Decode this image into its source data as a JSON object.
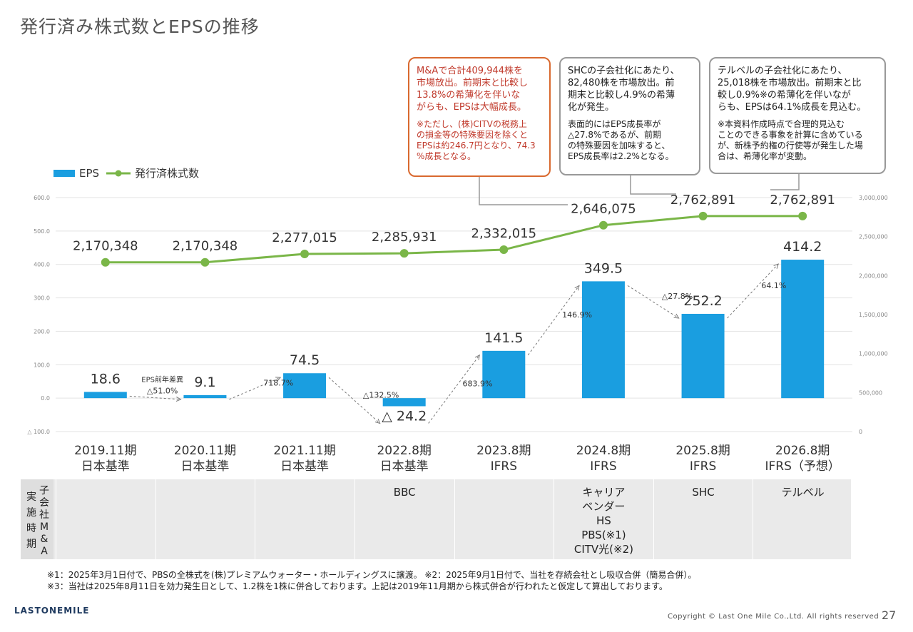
{
  "title": "発行済み株式数とEPSの推移",
  "callouts": [
    {
      "main": "M&Aで合計409,944株を\n市場放出。前期末と比較し\n13.8%の希薄化を伴いな\nがらも、EPSは大幅成長。",
      "note": "※ただし、(株)CITVの税務上\nの損金等の特殊要因を除くと\nEPSは約246.7円となり、74.3\n%成長となる。"
    },
    {
      "main": "SHCの子会社化にあたり、\n82,480株を市場放出。前\n期末と比較し4.9%の希薄\n化が発生。",
      "note": "表面的にはEPS成長率が\n△27.8%であるが、前期\nの特殊要因を加味すると、\nEPS成長率は2.2%となる。"
    },
    {
      "main": "テルベルの子会社化にあたり、\n25,018株を市場放出。前期末と比\n較し0.9%※の希薄化を伴いなが\nらも、EPSは64.1%成長を見込む。",
      "note": "※本資料作成時点で合理的見込む\nことのできる事象を計算に含めている\nが、新株予約権の行使等が発生した場\n合は、希薄化率が変動。"
    }
  ],
  "legend": {
    "eps": "EPS",
    "shares": "発行済株式数"
  },
  "colors": {
    "eps_bar": "#1a9ee0",
    "shares_line": "#7ab648",
    "callout_accent": "#d9692f"
  },
  "chart_data": {
    "type": "bar",
    "categories": [
      "2019.11期\n日本基準",
      "2020.11期\n日本基準",
      "2021.11期\n日本基準",
      "2022.8期\n日本基準",
      "2023.8期\nIFRS",
      "2024.8期\nIFRS",
      "2025.8期\nIFRS",
      "2026.8期\nIFRS（予想）"
    ],
    "series": [
      {
        "name": "EPS",
        "type": "bar",
        "axis": "left",
        "values": [
          18.6,
          9.1,
          74.5,
          -24.2,
          141.5,
          349.5,
          252.2,
          414.2
        ],
        "labels": [
          "18.6",
          "9.1",
          "74.5",
          "△ 24.2",
          "141.5",
          "349.5",
          "252.2",
          "414.2"
        ]
      },
      {
        "name": "発行済株式数",
        "type": "line",
        "axis": "right",
        "values": [
          2170348,
          2170348,
          2277015,
          2285931,
          2332015,
          2646075,
          2762891,
          2762891
        ],
        "labels": [
          "2,170,348",
          "2,170,348",
          "2,277,015",
          "2,285,931",
          "2,332,015",
          "2,646,075",
          "2,762,891",
          "2,762,891"
        ]
      }
    ],
    "growth_annotations": [
      {
        "from": 0,
        "to": 1,
        "label": "△51.0%",
        "prefix": "EPS前年差異"
      },
      {
        "from": 1,
        "to": 2,
        "label": "718.7%"
      },
      {
        "from": 2,
        "to": 3,
        "label": "△132.5%"
      },
      {
        "from": 3,
        "to": 4,
        "label": "683.9%"
      },
      {
        "from": 4,
        "to": 5,
        "label": "146.9%"
      },
      {
        "from": 5,
        "to": 6,
        "label": "△27.8%"
      },
      {
        "from": 6,
        "to": 7,
        "label": "64.1%"
      }
    ],
    "left_axis": {
      "ylim": [
        -100,
        600
      ],
      "ticks": [
        600,
        500,
        400,
        300,
        200,
        100,
        0,
        -100
      ],
      "tick_labels": [
        "600.0",
        "500.0",
        "400.0",
        "300.0",
        "200.0",
        "100.0",
        "0.0",
        "△ 100.0"
      ]
    },
    "right_axis": {
      "ylim": [
        0,
        3000000
      ],
      "ticks": [
        3000000,
        2500000,
        2000000,
        1500000,
        1000000,
        500000,
        0
      ],
      "tick_labels": [
        "3,000,000",
        "2,500,000",
        "2,000,000",
        "1,500,000",
        "1,000,000",
        "500,000",
        "0"
      ]
    },
    "grid": true
  },
  "ma_table": {
    "header": "子会社M&A実施時期",
    "cells": [
      "",
      "",
      "",
      "BBC",
      "",
      "キャリア\nベンダー\nHS\nPBS(※1)\nCITV光(※2)",
      "SHC",
      "テルベル"
    ]
  },
  "footnotes": [
    "※1：2025年3月1日付で、PBSの全株式を(株)プレミアムウォーター・ホールディングスに譲渡。 ※2：2025年9月1日付で、当社を存続会社とし吸収合併（簡易合併）。",
    "※3：当社は2025年8月11日を効力発生日として、1.2株を1株に併合しております。上記は2019年11月期から株式併合が行われたと仮定して算出しております。"
  ],
  "logo": "LASTONEMILE",
  "copyright": "Copyright © Last One Mile Co.,Ltd. All rights reserved",
  "page_number": "27"
}
